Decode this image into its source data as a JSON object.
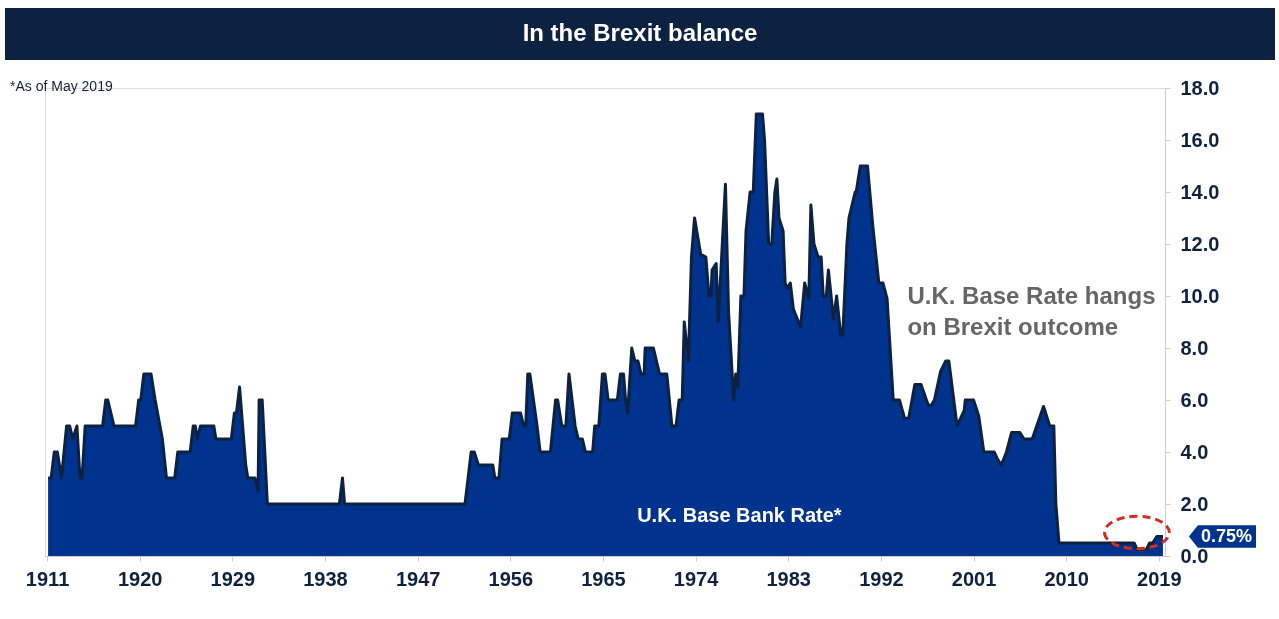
{
  "chart_data": {
    "type": "area",
    "title": "In the Brexit balance",
    "annotations": [
      "*As of May 2019",
      "U.K. Base Rate hangs\non Brexit outcome",
      {
        "text": "0.75%",
        "x": 2019.4,
        "y": 0.75
      }
    ],
    "xlim": [
      1910.8,
      2019.6
    ],
    "xticks": [
      1911,
      1920,
      1929,
      1938,
      1947,
      1956,
      1965,
      1974,
      1983,
      1992,
      2001,
      2010,
      2019
    ],
    "ylim": [
      0,
      18
    ],
    "yticks": [
      {
        "value": 0,
        "label": "0.0"
      },
      {
        "value": 2,
        "label": "2.0"
      },
      {
        "value": 4,
        "label": "4.0"
      },
      {
        "value": 6,
        "label": "6.0"
      },
      {
        "value": 8,
        "label": "8.0"
      },
      {
        "value": 10,
        "label": "10.0"
      },
      {
        "value": 12,
        "label": "12.0"
      },
      {
        "value": 14,
        "label": "14.0"
      },
      {
        "value": 16,
        "label": "16.0"
      },
      {
        "value": 18,
        "label": "18.0"
      }
    ],
    "grid": false,
    "series": [
      {
        "name": "U.K. Base Bank Rate*",
        "color": "#00338d",
        "x": [
          1911.1,
          1911.4,
          1911.7,
          1912.0,
          1912.4,
          1912.9,
          1913.2,
          1913.5,
          1913.9,
          1914.2,
          1914.4,
          1914.7,
          1916.4,
          1916.7,
          1916.9,
          1917.5,
          1919.6,
          1919.9,
          1920.1,
          1920.4,
          1921.1,
          1921.5,
          1922.2,
          1922.6,
          1923.4,
          1923.7,
          1924.9,
          1925.2,
          1925.4,
          1925.6,
          1925.9,
          1927.2,
          1927.4,
          1928.9,
          1929.2,
          1929.4,
          1929.7,
          1930.3,
          1930.5,
          1931.2,
          1931.5,
          1931.6,
          1931.9,
          1932.4,
          1939.4,
          1939.7,
          1939.9,
          1951.6,
          1952.2,
          1952.5,
          1952.9,
          1954.3,
          1954.5,
          1954.9,
          1955.2,
          1955.9,
          1956.2,
          1957.0,
          1957.3,
          1957.5,
          1957.7,
          1957.9,
          1958.6,
          1958.9,
          1959.9,
          1960.4,
          1960.6,
          1961.0,
          1961.4,
          1961.7,
          1962.3,
          1962.6,
          1963.0,
          1963.3,
          1964.0,
          1964.2,
          1964.6,
          1964.95,
          1965.2,
          1965.5,
          1966.4,
          1966.7,
          1967.0,
          1967.2,
          1967.4,
          1967.8,
          1968.1,
          1968.4,
          1968.7,
          1969.0,
          1969.1,
          1969.9,
          1970.5,
          1971.2,
          1971.7,
          1972.1,
          1972.4,
          1972.7,
          1972.9,
          1973.3,
          1973.6,
          1973.9,
          1974.5,
          1975.0,
          1975.3,
          1975.5,
          1975.6,
          1976.0,
          1976.2,
          1976.9,
          1977.2,
          1977.7,
          1977.9,
          1978.1,
          1978.4,
          1978.7,
          1978.9,
          1979.3,
          1979.6,
          1979.9,
          1980.5,
          1980.7,
          1981.1,
          1981.4,
          1981.7,
          1981.9,
          1982.1,
          1982.5,
          1982.7,
          1982.9,
          1983.2,
          1983.5,
          1984.2,
          1984.6,
          1985.0,
          1985.2,
          1985.5,
          1985.9,
          1986.2,
          1986.4,
          1986.7,
          1986.9,
          1987.4,
          1987.7,
          1988.1,
          1988.3,
          1988.7,
          1988.9,
          1989.5,
          1989.6,
          1990.0,
          1990.7,
          1991.2,
          1991.8,
          1992.2,
          1992.6,
          1993.2,
          1993.8,
          1994.3,
          1994.7,
          1995.3,
          1995.9,
          1996.6,
          1996.9,
          1997.2,
          1997.8,
          1998.3,
          1998.6,
          1999.4,
          2000.1,
          2000.2,
          2001.0,
          2001.5,
          2002.0,
          2003.0,
          2003.3,
          2003.7,
          2004.2,
          2004.7,
          2005.5,
          2005.9,
          2006.7,
          2007.8,
          2008.4,
          2008.8,
          2009.0,
          2009.3,
          2016.6,
          2016.9,
          2017.8,
          2018.1,
          2018.4,
          2018.8,
          2019.4
        ],
        "values": [
          3,
          3,
          4,
          4,
          3,
          5,
          5,
          4.5,
          5,
          3,
          3,
          5,
          5,
          6,
          6,
          5,
          5,
          6,
          6,
          7,
          7,
          6,
          4.5,
          3,
          3,
          4,
          4,
          5,
          5,
          4.5,
          5,
          5,
          4.5,
          4.5,
          5.5,
          5.5,
          6.5,
          3.5,
          3,
          3,
          2.5,
          6,
          6,
          2,
          2,
          3,
          2,
          2,
          4,
          4,
          3.5,
          3.5,
          3,
          3,
          4.5,
          4.5,
          5.5,
          5.5,
          5,
          5,
          7,
          7,
          5,
          4,
          4,
          6,
          6,
          5,
          5,
          7,
          5,
          4.5,
          4.5,
          4,
          4,
          5,
          5,
          7,
          7,
          6,
          6,
          7,
          7,
          6,
          5.5,
          8,
          7.5,
          7.5,
          7,
          7,
          8,
          8,
          7,
          7,
          5,
          5,
          6,
          6,
          9,
          7.5,
          11.5,
          13,
          11.6,
          11.5,
          10,
          10,
          11,
          11.25,
          9,
          14.3,
          9.4,
          6,
          7,
          6.5,
          10,
          10,
          12.5,
          14,
          14,
          17,
          17,
          16,
          12,
          12,
          14,
          14.5,
          13,
          12.5,
          10.5,
          10.3,
          10.5,
          9.5,
          8.8,
          10.5,
          9.9,
          13.5,
          12,
          11.5,
          11.5,
          10,
          10,
          11,
          9.1,
          10,
          8.5,
          8.5,
          12,
          13,
          14,
          14,
          15,
          15,
          12.75,
          10.5,
          10.5,
          9.9,
          6,
          6,
          5.3,
          5.3,
          6.6,
          6.6,
          5.8,
          5.8,
          6,
          7.1,
          7.5,
          7.5,
          5,
          5.6,
          6,
          6,
          5.4,
          4,
          4,
          3.75,
          3.5,
          4,
          4.75,
          4.75,
          4.5,
          4.5,
          5.75,
          5,
          5,
          2,
          0.5,
          0.5,
          0.25,
          0.25,
          0.5,
          0.5,
          0.75,
          0.75
        ]
      }
    ]
  }
}
